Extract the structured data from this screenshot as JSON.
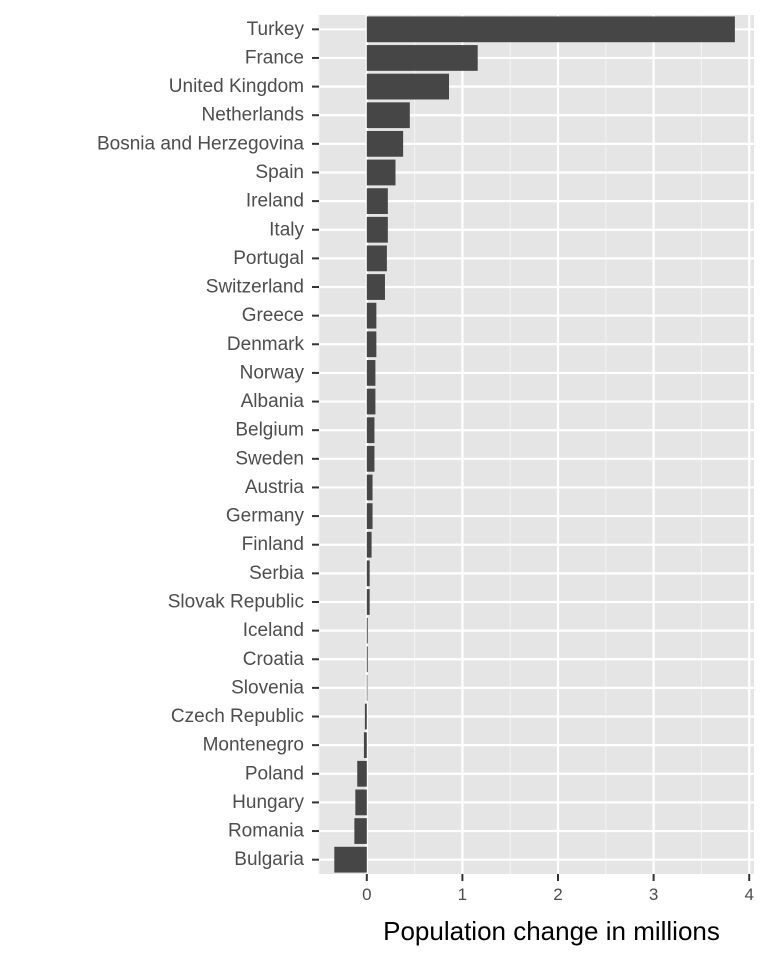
{
  "chart_data": {
    "type": "bar",
    "orientation": "horizontal",
    "title": "",
    "xlabel": "Population change in millions",
    "ylabel": "",
    "xlim": [
      -0.5,
      4.05
    ],
    "x_ticks": [
      0,
      1,
      2,
      3,
      4
    ],
    "grid": true,
    "legend": "none",
    "categories": [
      "Turkey",
      "France",
      "United Kingdom",
      "Netherlands",
      "Bosnia and Herzegovina",
      "Spain",
      "Ireland",
      "Italy",
      "Portugal",
      "Switzerland",
      "Greece",
      "Denmark",
      "Norway",
      "Albania",
      "Belgium",
      "Sweden",
      "Austria",
      "Germany",
      "Finland",
      "Serbia",
      "Slovak Republic",
      "Iceland",
      "Croatia",
      "Slovenia",
      "Czech Republic",
      "Montenegro",
      "Poland",
      "Hungary",
      "Romania",
      "Bulgaria"
    ],
    "values": [
      3.85,
      1.16,
      0.86,
      0.45,
      0.38,
      0.3,
      0.22,
      0.22,
      0.21,
      0.19,
      0.1,
      0.1,
      0.09,
      0.09,
      0.08,
      0.08,
      0.06,
      0.06,
      0.05,
      0.03,
      0.03,
      0.01,
      0.01,
      0.0,
      -0.02,
      -0.03,
      -0.1,
      -0.12,
      -0.13,
      -0.34
    ],
    "colors": {
      "bar": "#464646",
      "panel": "#e5e5e5",
      "grid_major": "#ffffff",
      "grid_minor": "#f2f2f2",
      "tick": "#333333"
    }
  }
}
